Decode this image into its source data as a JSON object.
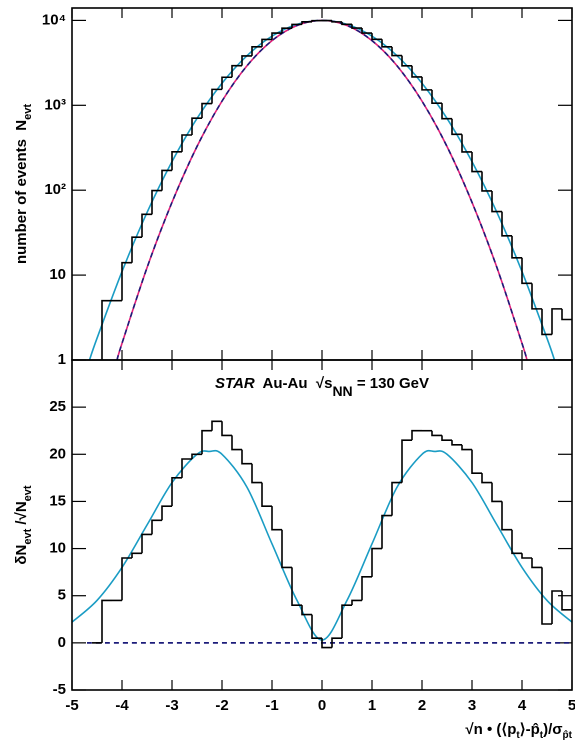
{
  "chart_data": [
    {
      "type": "histogram",
      "log_y": true,
      "ylabel": [
        {
          "text": "number of events  N"
        },
        {
          "text": "evt",
          "style": "sub"
        }
      ],
      "xlim": [
        -5,
        5
      ],
      "xticks": [
        -5,
        -4,
        -3,
        -2,
        -1,
        0,
        1,
        2,
        3,
        4,
        5
      ],
      "ylim": [
        1,
        14000
      ],
      "yticks": [
        1,
        10,
        {
          "value": 100,
          "label": "10²"
        },
        {
          "value": 1000,
          "label": "10³"
        },
        {
          "value": 10000,
          "label": "10⁴"
        }
      ],
      "color": "#000000",
      "bins": [
        -4.4,
        -4.2,
        -4,
        -3.8,
        -3.6,
        -3.4,
        -3.2,
        -3,
        -2.8,
        -2.6,
        -2.4,
        -2.2,
        -2,
        -1.8,
        -1.6,
        -1.4,
        -1.2,
        -1,
        -0.8,
        -0.6,
        -0.4,
        -0.2,
        0,
        0.2,
        0.4,
        0.6,
        0.8,
        1,
        1.2,
        1.4,
        1.6,
        1.8,
        2,
        2.2,
        2.4,
        2.6,
        2.8,
        3,
        3.2,
        3.4,
        3.6,
        3.8,
        4,
        4.2,
        4.4,
        4.6,
        4.8,
        5
      ],
      "values": [
        5,
        5,
        14,
        28,
        52,
        99,
        171,
        283,
        447,
        706,
        1047,
        1540,
        2140,
        2930,
        3820,
        4880,
        5960,
        7100,
        8100,
        8980,
        9620,
        9940,
        9970,
        9610,
        9000,
        8130,
        7090,
        5990,
        4880,
        3850,
        2920,
        2160,
        1520,
        1060,
        695,
        455,
        282,
        166,
        98,
        56,
        29,
        16,
        8,
        4,
        2,
        4,
        3
      ],
      "curves": [
        {
          "color": "#1a9cc4",
          "x": [
            -4.65,
            -4.5,
            -4,
            -3.5,
            -3,
            -2.5,
            -2,
            -1.5,
            -1,
            -0.5,
            0,
            0.5,
            1,
            1.5,
            2,
            2.5,
            3,
            3.5,
            4,
            4.5,
            4.65
          ],
          "values": [
            1,
            1.8,
            11,
            54.5,
            217,
            700,
            1820,
            3840,
            6530,
            8990,
            10000,
            8990,
            6530,
            3840,
            1820,
            700,
            217,
            54.5,
            11,
            1.8,
            1
          ]
        },
        {
          "color": "#e0207a",
          "dash_color": "#1c1c7a",
          "x": [
            -4.1,
            -4,
            -3.5,
            -3,
            -2.5,
            -2,
            -1.5,
            -1,
            -0.5,
            0,
            0.5,
            1,
            1.5,
            2,
            2.5,
            3,
            3.5,
            4,
            4.1
          ],
          "values": [
            1,
            1.57,
            12.2,
            72,
            327,
            1120,
            2920,
            5780,
            8720,
            10000,
            8720,
            5780,
            2920,
            1120,
            327,
            72,
            12.2,
            1.57,
            1
          ]
        }
      ]
    },
    {
      "type": "histogram",
      "log_y": false,
      "ylabel": [
        {
          "text": "δN"
        },
        {
          "text": "evt",
          "style": "sub"
        },
        {
          "text": " /√N"
        },
        {
          "text": "evt",
          "style": "sub"
        }
      ],
      "annotation": [
        {
          "text": "STAR",
          "style": "italic"
        },
        {
          "text": "  Au-Au  √s"
        },
        {
          "text": "NN",
          "style": "sub"
        },
        {
          "text": " = 130 GeV"
        }
      ],
      "xlabel": [
        {
          "text": "√n • (⟨p"
        },
        {
          "text": "t",
          "style": "sub"
        },
        {
          "text": "⟩-p̂"
        },
        {
          "text": "t",
          "style": "sub"
        },
        {
          "text": ")/σ"
        },
        {
          "text": "p̂t",
          "style": "sub"
        }
      ],
      "xlim": [
        -5,
        5
      ],
      "xticks": [
        -5,
        -4,
        -3,
        -2,
        -1,
        0,
        1,
        2,
        3,
        4,
        5
      ],
      "ylim": [
        -5,
        30
      ],
      "yticks": [
        -5,
        0,
        5,
        10,
        15,
        20,
        25
      ],
      "color": "#000000",
      "bins": [
        -4.6,
        -4.4,
        -4.2,
        -4,
        -3.8,
        -3.6,
        -3.4,
        -3.2,
        -3,
        -2.8,
        -2.6,
        -2.4,
        -2.2,
        -2,
        -1.8,
        -1.6,
        -1.4,
        -1.2,
        -1,
        -0.8,
        -0.6,
        -0.4,
        -0.2,
        0,
        0.2,
        0.4,
        0.6,
        0.8,
        1,
        1.2,
        1.4,
        1.6,
        1.8,
        2,
        2.2,
        2.4,
        2.6,
        2.8,
        3,
        3.2,
        3.4,
        3.6,
        3.8,
        4,
        4.2,
        4.4,
        4.6,
        4.8,
        5
      ],
      "values": [
        0,
        4.5,
        4.5,
        9,
        9.5,
        11.5,
        13,
        14.5,
        17.5,
        19.5,
        20,
        22.5,
        23.5,
        22,
        20.5,
        19,
        17,
        14.5,
        12,
        8,
        4,
        3,
        0.5,
        -0.5,
        0.5,
        4,
        4.5,
        7,
        10,
        13.5,
        17,
        21.5,
        22.5,
        22.5,
        22,
        21.5,
        21,
        20.5,
        18,
        17,
        15,
        12,
        9.5,
        9,
        8,
        2,
        5.5,
        3.5
      ],
      "curves": [
        {
          "color": "#1a9cc4",
          "x": [
            -5,
            -4.5,
            -4,
            -3.5,
            -3,
            -2.5,
            -2.25,
            -2,
            -1.5,
            -1,
            -0.5,
            0,
            0.5,
            1,
            1.5,
            2,
            2.25,
            2.5,
            3,
            3.5,
            4,
            4.5,
            5
          ],
          "values": [
            2.2,
            4.5,
            8,
            12.5,
            17,
            20,
            20.3,
            20,
            16.5,
            10.5,
            4.5,
            0.3,
            4.5,
            10.5,
            16.5,
            20,
            20.3,
            20,
            17,
            12.5,
            8,
            4.5,
            2.2
          ]
        },
        {
          "color": "#1c1c7a",
          "dashed": true,
          "x": [
            -4.7,
            5
          ],
          "values": [
            0,
            0
          ]
        }
      ]
    }
  ]
}
